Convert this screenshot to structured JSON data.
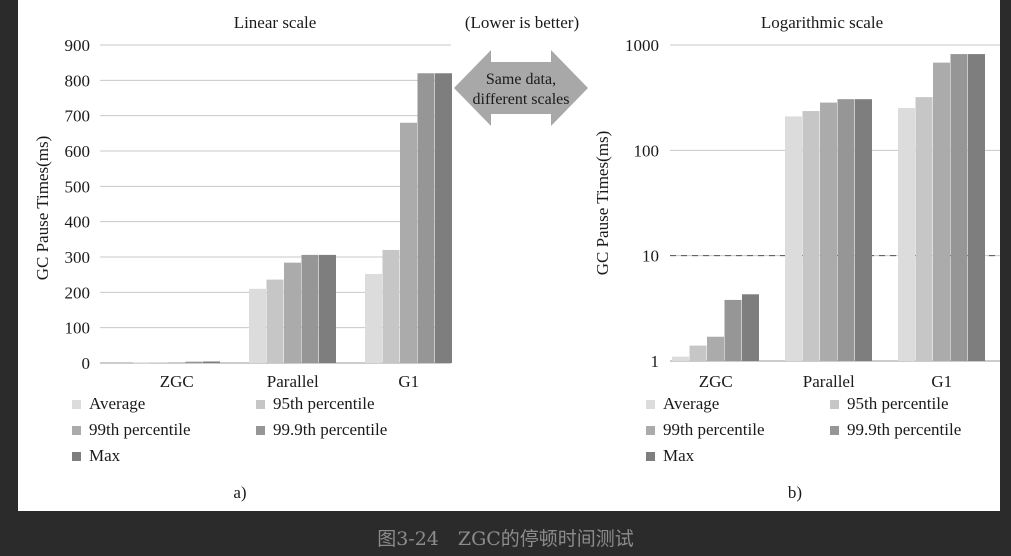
{
  "center": {
    "note": "(Lower is better)",
    "arrow_line1": "Same data,",
    "arrow_line2": "different scales"
  },
  "caption": "图3-24　ZGC的停顿时间测试",
  "series_colors": [
    "#dcdcdc",
    "#c6c6c6",
    "#ababab",
    "#969696",
    "#7e7e7e"
  ],
  "chart_data": [
    {
      "type": "bar",
      "title": "Linear scale",
      "panel_label": "a)",
      "ylabel": "GC Pause Times(ms)",
      "categories": [
        "ZGC",
        "Parallel",
        "G1"
      ],
      "ylim": [
        0,
        900
      ],
      "yticks": [
        0,
        100,
        200,
        300,
        400,
        500,
        600,
        700,
        800,
        900
      ],
      "scale": "linear",
      "legend_position": "bottom",
      "series": [
        {
          "name": "Average",
          "values": [
            1.1,
            210,
            252
          ]
        },
        {
          "name": "95th percentile",
          "values": [
            1.4,
            236,
            320
          ]
        },
        {
          "name": "99th percentile",
          "values": [
            1.7,
            284,
            680
          ]
        },
        {
          "name": "99.9th percentile",
          "values": [
            3.8,
            306,
            820
          ]
        },
        {
          "name": "Max",
          "values": [
            4.3,
            306,
            820
          ]
        }
      ]
    },
    {
      "type": "bar",
      "title": "Logarithmic scale",
      "panel_label": "b)",
      "ylabel": "GC Pause Times(ms)",
      "categories": [
        "ZGC",
        "Parallel",
        "G1"
      ],
      "ylim": [
        1,
        1000
      ],
      "yticks": [
        1,
        10,
        100,
        1000
      ],
      "scale": "log",
      "reference_line": 10,
      "legend_position": "bottom",
      "series": [
        {
          "name": "Average",
          "values": [
            1.1,
            210,
            252
          ]
        },
        {
          "name": "95th percentile",
          "values": [
            1.4,
            236,
            320
          ]
        },
        {
          "name": "99th percentile",
          "values": [
            1.7,
            284,
            680
          ]
        },
        {
          "name": "99.9th percentile",
          "values": [
            3.8,
            306,
            820
          ]
        },
        {
          "name": "Max",
          "values": [
            4.3,
            306,
            820
          ]
        }
      ]
    }
  ]
}
